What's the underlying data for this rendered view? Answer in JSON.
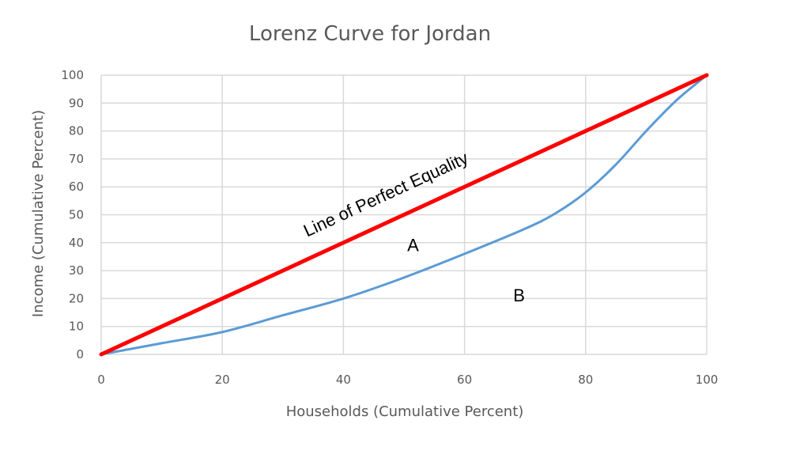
{
  "chart_data": {
    "type": "line",
    "title": "Lorenz Curve for Jordan",
    "xlabel": "Households (Cumulative Percent)",
    "ylabel": "Income (Cumulative Percent)",
    "xlim": [
      0,
      100
    ],
    "ylim": [
      0,
      100
    ],
    "x_ticks": [
      0,
      20,
      40,
      60,
      80,
      100
    ],
    "y_ticks": [
      0,
      10,
      20,
      30,
      40,
      50,
      60,
      70,
      80,
      90,
      100
    ],
    "grid": true,
    "series": [
      {
        "name": "",
        "color": "#ff0000",
        "x": [
          0,
          100
        ],
        "y": [
          0,
          100
        ]
      },
      {
        "name": "",
        "color": "#5b9bd5",
        "x": [
          0,
          10,
          20,
          30,
          40,
          50,
          60,
          70,
          75,
          80,
          85,
          90,
          95,
          100
        ],
        "y": [
          0,
          4,
          8,
          14,
          20,
          27.5,
          36,
          45,
          50.5,
          58,
          68,
          80,
          91,
          100
        ]
      }
    ],
    "annotations": [
      {
        "text": "Line of Perfect Equality",
        "x": 34,
        "y": 42
      },
      {
        "text": "A",
        "x": 51.5,
        "y": 37
      },
      {
        "text": "B",
        "x": 69,
        "y": 19
      }
    ]
  }
}
